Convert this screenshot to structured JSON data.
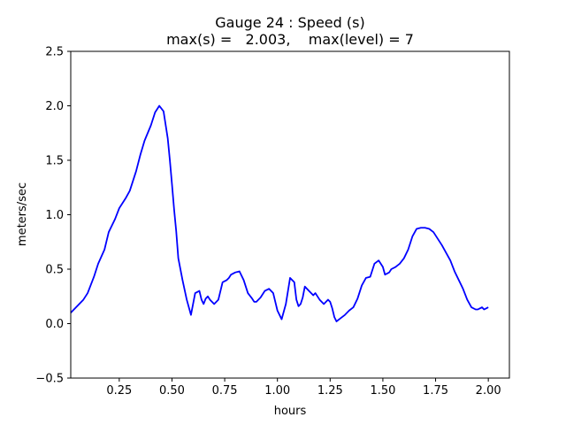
{
  "chart_data": {
    "type": "line",
    "title": "Gauge 24 : Speed (s)",
    "subtitle": "max(s) =   2.003,    max(level) = 7",
    "xlabel": "hours",
    "ylabel": "meters/sec",
    "xlim": [
      0.02,
      2.1
    ],
    "ylim": [
      -0.5,
      2.5
    ],
    "xticks": [
      "0.25",
      "0.50",
      "0.75",
      "1.00",
      "1.25",
      "1.50",
      "1.75",
      "2.00"
    ],
    "yticks": [
      "-0.5",
      "0.0",
      "0.5",
      "1.0",
      "1.5",
      "2.0",
      "2.5"
    ],
    "grid": false,
    "series": [
      {
        "color": "#0000ff",
        "x": [
          0.02,
          0.05,
          0.08,
          0.1,
          0.11,
          0.13,
          0.15,
          0.18,
          0.2,
          0.23,
          0.25,
          0.28,
          0.3,
          0.33,
          0.35,
          0.37,
          0.4,
          0.42,
          0.44,
          0.46,
          0.48,
          0.49,
          0.5,
          0.51,
          0.52,
          0.53,
          0.55,
          0.57,
          0.59,
          0.61,
          0.63,
          0.64,
          0.65,
          0.66,
          0.67,
          0.68,
          0.7,
          0.72,
          0.74,
          0.76,
          0.77,
          0.78,
          0.8,
          0.82,
          0.84,
          0.86,
          0.88,
          0.89,
          0.9,
          0.92,
          0.94,
          0.96,
          0.98,
          1.0,
          1.02,
          1.04,
          1.05,
          1.06,
          1.08,
          1.09,
          1.1,
          1.11,
          1.12,
          1.13,
          1.15,
          1.17,
          1.18,
          1.2,
          1.22,
          1.24,
          1.25,
          1.26,
          1.27,
          1.28,
          1.3,
          1.32,
          1.34,
          1.36,
          1.38,
          1.4,
          1.42,
          1.44,
          1.46,
          1.48,
          1.5,
          1.51,
          1.52,
          1.53,
          1.54,
          1.56,
          1.58,
          1.6,
          1.62,
          1.64,
          1.66,
          1.68,
          1.7,
          1.72,
          1.74,
          1.76,
          1.78,
          1.8,
          1.82,
          1.84,
          1.86,
          1.88,
          1.9,
          1.92,
          1.94,
          1.95,
          1.96,
          1.97,
          1.98,
          1.99,
          2.0
        ],
        "y": [
          0.1,
          0.16,
          0.22,
          0.28,
          0.33,
          0.43,
          0.55,
          0.68,
          0.84,
          0.96,
          1.06,
          1.15,
          1.22,
          1.4,
          1.55,
          1.68,
          1.82,
          1.94,
          2.0,
          1.95,
          1.7,
          1.5,
          1.28,
          1.05,
          0.85,
          0.6,
          0.4,
          0.22,
          0.08,
          0.28,
          0.3,
          0.22,
          0.18,
          0.23,
          0.25,
          0.22,
          0.18,
          0.22,
          0.38,
          0.4,
          0.42,
          0.45,
          0.47,
          0.48,
          0.4,
          0.28,
          0.23,
          0.2,
          0.2,
          0.24,
          0.3,
          0.32,
          0.28,
          0.12,
          0.04,
          0.18,
          0.3,
          0.42,
          0.38,
          0.22,
          0.16,
          0.18,
          0.24,
          0.34,
          0.3,
          0.26,
          0.28,
          0.22,
          0.18,
          0.22,
          0.2,
          0.14,
          0.06,
          0.02,
          0.05,
          0.08,
          0.12,
          0.15,
          0.23,
          0.35,
          0.42,
          0.43,
          0.55,
          0.58,
          0.52,
          0.45,
          0.46,
          0.47,
          0.5,
          0.52,
          0.55,
          0.6,
          0.68,
          0.8,
          0.87,
          0.88,
          0.88,
          0.87,
          0.84,
          0.78,
          0.72,
          0.65,
          0.58,
          0.48,
          0.4,
          0.32,
          0.22,
          0.15,
          0.13,
          0.13,
          0.14,
          0.15,
          0.13,
          0.14,
          0.15
        ]
      }
    ]
  }
}
